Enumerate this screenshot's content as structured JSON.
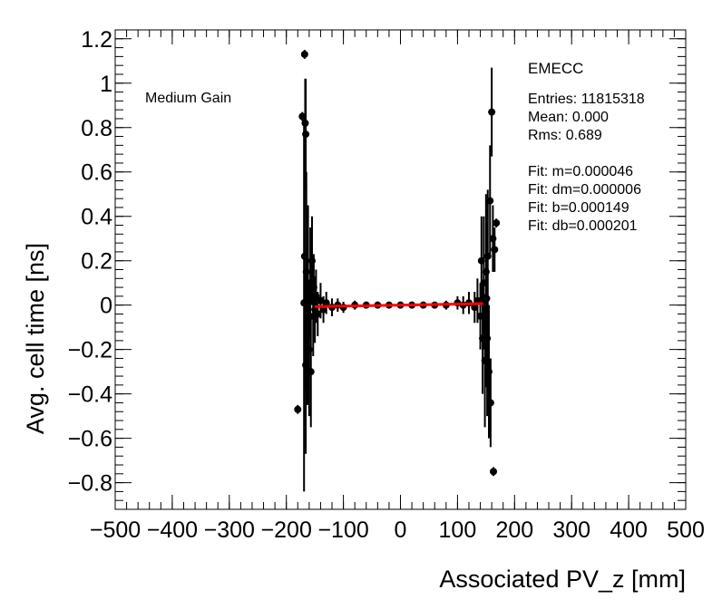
{
  "chart_data": {
    "type": "scatter",
    "title": "",
    "xlabel": "Associated PV_z [mm]",
    "ylabel": "Avg. cell time [ns]",
    "xlim": [
      -500,
      500
    ],
    "ylim": [
      -0.92,
      1.24
    ],
    "x_ticks": [
      -500,
      -400,
      -300,
      -200,
      -100,
      0,
      100,
      200,
      300,
      400,
      500
    ],
    "x_tick_labels": [
      "−500",
      "−400",
      "−300",
      "−200",
      "−100",
      "0",
      "100",
      "200",
      "300",
      "400",
      "500"
    ],
    "y_ticks": [
      -0.8,
      -0.6,
      -0.4,
      -0.2,
      0,
      0.2,
      0.4,
      0.6,
      0.8,
      1,
      1.2
    ],
    "y_tick_labels": [
      "−0.8",
      "−0.6",
      "−0.4",
      "−0.2",
      "0",
      "0.2",
      "0.4",
      "0.6",
      "0.8",
      "1",
      "1.2"
    ],
    "grid": false,
    "annotations": {
      "gain_label": "Medium Gain",
      "partition": "EMECC",
      "entries": "Entries: 11815318",
      "mean": "Mean: 0.000",
      "rms": "Rms: 0.689",
      "fit_m": "Fit: m=0.000046",
      "fit_dm": "Fit: dm=0.000006",
      "fit_b": "Fit: b=0.000149",
      "fit_db": "Fit: db=0.000201"
    },
    "fit_line": {
      "color": "#ff0000",
      "x": [
        -150,
        145
      ],
      "y": [
        -0.0068,
        0.0068
      ]
    },
    "series": [
      {
        "marker_color": "#000000",
        "points": [
          {
            "x": -180,
            "y": -0.47,
            "err": 0.02
          },
          {
            "x": -172,
            "y": 0.85,
            "err": 0.02
          },
          {
            "x": -168,
            "y": 1.13,
            "err": 0.02
          },
          {
            "x": -167,
            "y": 0.82,
            "err": 0.2
          },
          {
            "x": -166,
            "y": 0.77,
            "err": 0.25
          },
          {
            "x": -169,
            "y": 0.01,
            "err": 0.85
          },
          {
            "x": -168,
            "y": 0.22,
            "err": 0.6
          },
          {
            "x": -166,
            "y": -0.27,
            "err": 0.4
          },
          {
            "x": -165,
            "y": 0.15,
            "err": 0.45
          },
          {
            "x": -163,
            "y": -0.1,
            "err": 0.35
          },
          {
            "x": -162,
            "y": 0.05,
            "err": 0.4
          },
          {
            "x": -160,
            "y": -0.2,
            "err": 0.3
          },
          {
            "x": -158,
            "y": 0.1,
            "err": 0.25
          },
          {
            "x": -157,
            "y": -0.3,
            "err": 0.25
          },
          {
            "x": -155,
            "y": 0.2,
            "err": 0.2
          },
          {
            "x": -153,
            "y": -0.05,
            "err": 0.18
          },
          {
            "x": -152,
            "y": 0.08,
            "err": 0.15
          },
          {
            "x": -150,
            "y": -0.02,
            "err": 0.15
          },
          {
            "x": -148,
            "y": 0.04,
            "err": 0.12
          },
          {
            "x": -145,
            "y": -0.04,
            "err": 0.1
          },
          {
            "x": -140,
            "y": 0.02,
            "err": 0.08
          },
          {
            "x": -135,
            "y": -0.02,
            "err": 0.06
          },
          {
            "x": -130,
            "y": 0.01,
            "err": 0.05
          },
          {
            "x": -120,
            "y": -0.01,
            "err": 0.04
          },
          {
            "x": -110,
            "y": 0.0,
            "err": 0.03
          },
          {
            "x": -100,
            "y": -0.01,
            "err": 0.025
          },
          {
            "x": -80,
            "y": 0.0,
            "err": 0.02
          },
          {
            "x": -60,
            "y": 0.0,
            "err": 0.015
          },
          {
            "x": -40,
            "y": 0.0,
            "err": 0.012
          },
          {
            "x": -20,
            "y": 0.0,
            "err": 0.01
          },
          {
            "x": 0,
            "y": 0.0,
            "err": 0.01
          },
          {
            "x": 20,
            "y": 0.0,
            "err": 0.01
          },
          {
            "x": 40,
            "y": 0.0,
            "err": 0.012
          },
          {
            "x": 60,
            "y": 0.0,
            "err": 0.015
          },
          {
            "x": 80,
            "y": 0.0,
            "err": 0.02
          },
          {
            "x": 100,
            "y": 0.01,
            "err": 0.03
          },
          {
            "x": 110,
            "y": 0.0,
            "err": 0.04
          },
          {
            "x": 120,
            "y": 0.01,
            "err": 0.05
          },
          {
            "x": 130,
            "y": -0.01,
            "err": 0.07
          },
          {
            "x": 135,
            "y": 0.02,
            "err": 0.1
          },
          {
            "x": 140,
            "y": -0.05,
            "err": 0.15
          },
          {
            "x": 142,
            "y": 0.2,
            "err": 0.2
          },
          {
            "x": 144,
            "y": -0.15,
            "err": 0.25
          },
          {
            "x": 146,
            "y": 0.1,
            "err": 0.3
          },
          {
            "x": 148,
            "y": -0.25,
            "err": 0.3
          },
          {
            "x": 150,
            "y": 0.15,
            "err": 0.35
          },
          {
            "x": 151,
            "y": 0.03,
            "err": 0.4
          },
          {
            "x": 152,
            "y": -0.15,
            "err": 0.35
          },
          {
            "x": 153,
            "y": 0.22,
            "err": 0.3
          },
          {
            "x": 155,
            "y": -0.3,
            "err": 0.3
          },
          {
            "x": 157,
            "y": 0.47,
            "err": 0.25
          },
          {
            "x": 158,
            "y": -0.44,
            "err": 0.2
          },
          {
            "x": 160,
            "y": 0.87,
            "err": 0.2
          },
          {
            "x": 162,
            "y": 0.3,
            "err": 0.15
          },
          {
            "x": 163,
            "y": -0.75,
            "err": 0.02
          },
          {
            "x": 165,
            "y": 0.25,
            "err": 0.1
          },
          {
            "x": 168,
            "y": 0.37,
            "err": 0.02
          }
        ]
      }
    ]
  }
}
